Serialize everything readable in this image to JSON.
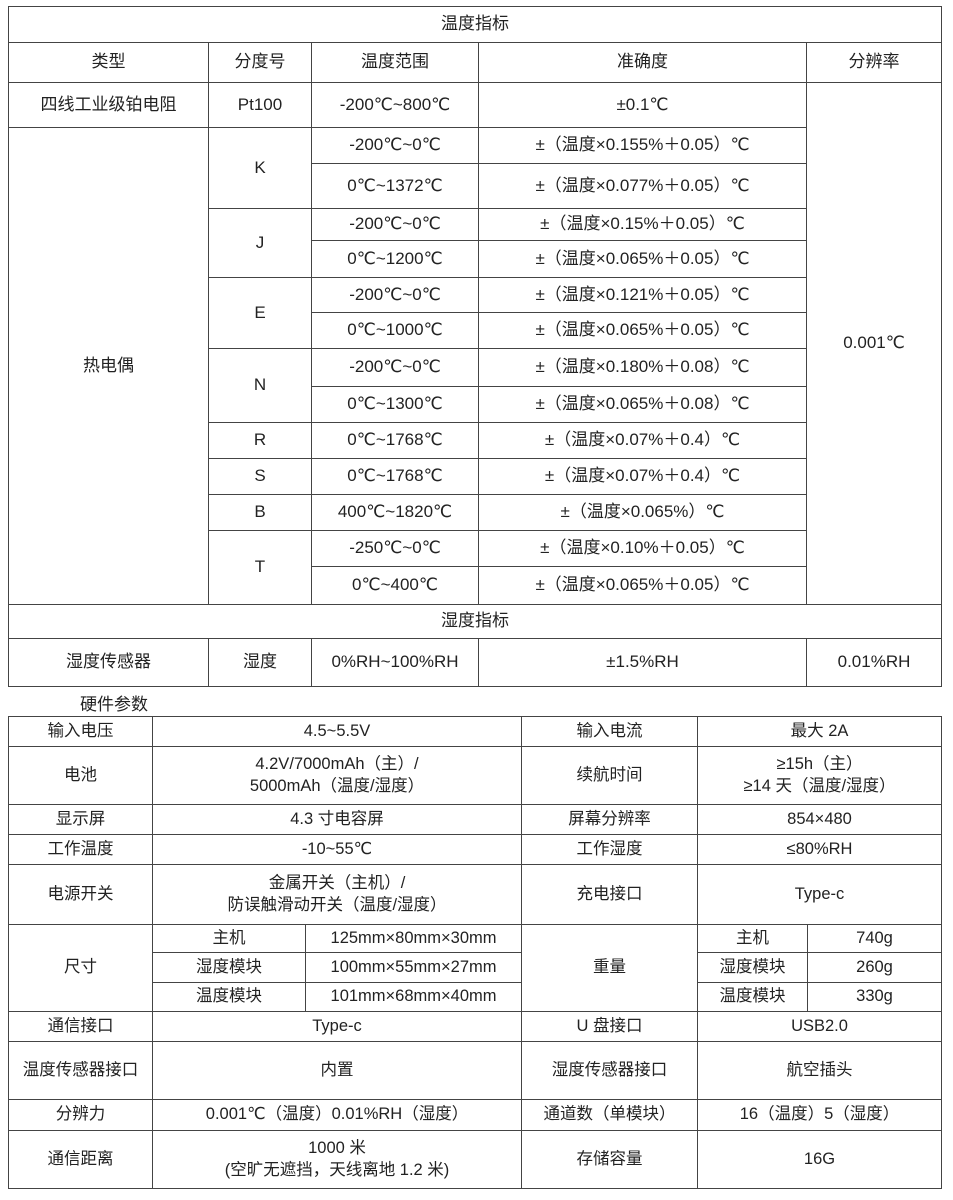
{
  "temp_table": {
    "title": "温度指标",
    "headers": [
      "类型",
      "分度号",
      "温度范围",
      "准确度",
      "分辨率"
    ],
    "pt100": {
      "type": "四线工业级铂电阻",
      "grade": "Pt100",
      "range": "-200℃~800℃",
      "accuracy": "±0.1℃"
    },
    "resolution": "0.001℃",
    "thermocouple_label": "热电偶",
    "thermocouples": [
      {
        "grade": "K",
        "rows": [
          {
            "range": "-200℃~0℃",
            "accuracy": "±（温度×0.155%＋0.05）℃"
          },
          {
            "range": "0℃~1372℃",
            "accuracy": "±（温度×0.077%＋0.05）℃"
          }
        ]
      },
      {
        "grade": "J",
        "rows": [
          {
            "range": "-200℃~0℃",
            "accuracy": "±（温度×0.15%＋0.05）℃"
          },
          {
            "range": "0℃~1200℃",
            "accuracy": "±（温度×0.065%＋0.05）℃"
          }
        ]
      },
      {
        "grade": "E",
        "rows": [
          {
            "range": "-200℃~0℃",
            "accuracy": "±（温度×0.121%＋0.05）℃"
          },
          {
            "range": "0℃~1000℃",
            "accuracy": "±（温度×0.065%＋0.05）℃"
          }
        ]
      },
      {
        "grade": "N",
        "rows": [
          {
            "range": "-200℃~0℃",
            "accuracy": "±（温度×0.180%＋0.08）℃"
          },
          {
            "range": "0℃~1300℃",
            "accuracy": "±（温度×0.065%＋0.08）℃"
          }
        ]
      },
      {
        "grade": "R",
        "rows": [
          {
            "range": "0℃~1768℃",
            "accuracy": "±（温度×0.07%＋0.4）℃"
          }
        ]
      },
      {
        "grade": "S",
        "rows": [
          {
            "range": "0℃~1768℃",
            "accuracy": "±（温度×0.07%＋0.4）℃"
          }
        ]
      },
      {
        "grade": "B",
        "rows": [
          {
            "range": "400℃~1820℃",
            "accuracy": "±（温度×0.065%）℃"
          }
        ]
      },
      {
        "grade": "T",
        "rows": [
          {
            "range": "-250℃~0℃",
            "accuracy": "±（温度×0.10%＋0.05）℃"
          },
          {
            "range": "0℃~400℃",
            "accuracy": "±（温度×0.065%＋0.05）℃"
          }
        ]
      }
    ],
    "humidity_title": "湿度指标",
    "humidity": {
      "type": "湿度传感器",
      "grade": "湿度",
      "range": "0%RH~100%RH",
      "accuracy": "±1.5%RH",
      "resolution": "0.01%RH"
    }
  },
  "hw_caption": "硬件参数",
  "hw": {
    "input_voltage": {
      "label": "输入电压",
      "value": "4.5~5.5V"
    },
    "input_current": {
      "label": "输入电流",
      "value": "最大 2A"
    },
    "battery": {
      "label": "电池",
      "value1": "4.2V/7000mAh（主）/",
      "value2": "5000mAh（温度/湿度）"
    },
    "endurance": {
      "label": "续航时间",
      "value1": "≥15h（主）",
      "value2": "≥14 天（温度/湿度）"
    },
    "display": {
      "label": "显示屏",
      "value": "4.3 寸电容屏"
    },
    "screen_res": {
      "label": "屏幕分辨率",
      "value": "854×480"
    },
    "work_temp": {
      "label": "工作温度",
      "value": "-10~55℃"
    },
    "work_humidity": {
      "label": "工作湿度",
      "value": "≤80%RH"
    },
    "power_switch": {
      "label": "电源开关",
      "value1": "金属开关（主机）/",
      "value2": "防误触滑动开关（温度/湿度）"
    },
    "charge_port": {
      "label": "充电接口",
      "value": "Type-c"
    },
    "size": {
      "label": "尺寸",
      "items": [
        {
          "name": "主机",
          "value": "125mm×80mm×30mm"
        },
        {
          "name": "湿度模块",
          "value": "100mm×55mm×27mm"
        },
        {
          "name": "温度模块",
          "value": "101mm×68mm×40mm"
        }
      ]
    },
    "weight": {
      "label": "重量",
      "items": [
        {
          "name": "主机",
          "value": "740g"
        },
        {
          "name": "湿度模块",
          "value": "260g"
        },
        {
          "name": "温度模块",
          "value": "330g"
        }
      ]
    },
    "comm_port": {
      "label": "通信接口",
      "value": "Type-c"
    },
    "usb_port": {
      "label": "U 盘接口",
      "value": "USB2.0"
    },
    "temp_sensor_port": {
      "label": "温度传感器接口",
      "value": "内置"
    },
    "hum_sensor_port": {
      "label": "湿度传感器接口",
      "value": "航空插头"
    },
    "resolution": {
      "label": "分辨力",
      "value": "0.001℃（温度）0.01%RH（湿度）"
    },
    "channels": {
      "label": "通道数（单模块）",
      "value": "16（温度）5（湿度）"
    },
    "comm_distance": {
      "label": "通信距离",
      "value1": "1000 米",
      "value2": "(空旷无遮挡，天线离地 1.2 米)"
    },
    "storage": {
      "label": "存储容量",
      "value": "16G"
    }
  }
}
